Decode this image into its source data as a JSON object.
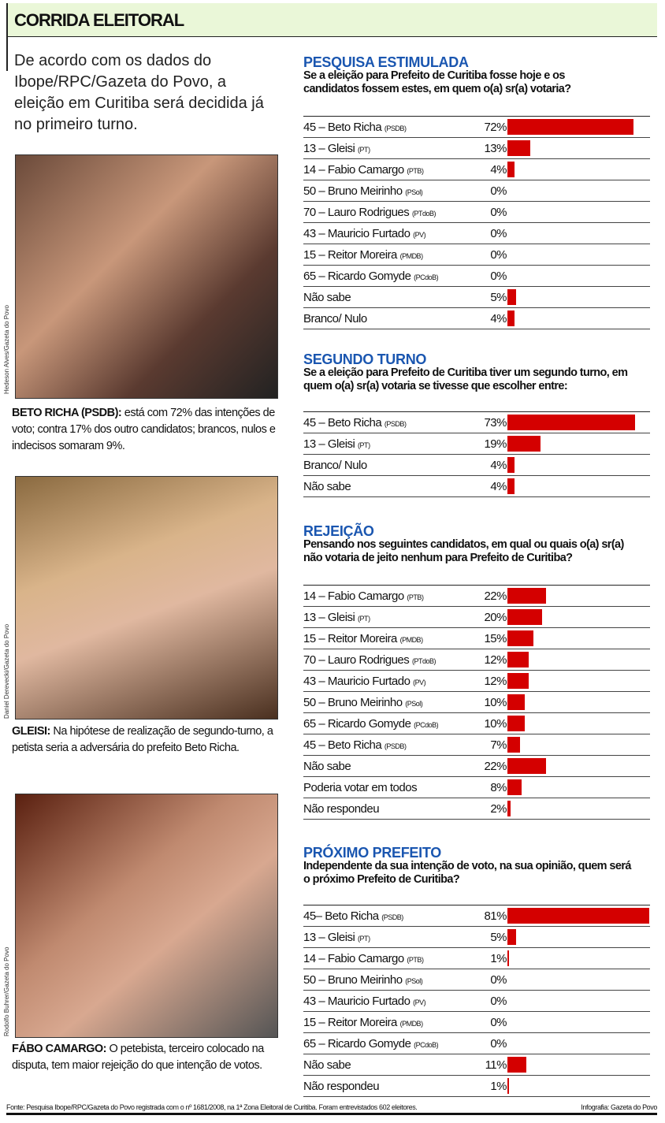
{
  "header": {
    "title": "CORRIDA ELEITORAL"
  },
  "intro": "De acordo com os dados do Ibope/RPC/Gazeta do Povo, a eleição em Curitiba será decidida já no primeiro turno.",
  "photos": [
    {
      "credit": "Hedeson Alves/Gazeta do Povo",
      "name": "BETO RICHA (PSDB):",
      "caption": "está com 72% das intenções de voto; contra 17% dos outro candidatos; brancos, nulos e indecisos somaram 9%."
    },
    {
      "credit": "Daniel Derevecki/Gazeta do Povo",
      "name": "GLEISI:",
      "caption": "Na hipótese de realização de segundo-turno, a petista seria a adversária do prefeito Beto Richa."
    },
    {
      "credit": "Rodolfo Buhrer/Gazeta do Povo",
      "name": "FÁBO CAMARGO:",
      "caption": "O petebista, terceiro colocado na disputa, tem maior rejeição do que intenção de votos."
    }
  ],
  "colors": {
    "bar": "#d40000",
    "title": "#1a56b0",
    "header_bg": "#eaf7d8"
  },
  "chart_data": [
    {
      "type": "bar",
      "title": "PESQUISA ESTIMULADA",
      "subtitle": "Se a eleição para Prefeito de Curitiba fosse hoje e os candidatos fossem estes, em quem o(a) sr(a) votaria?",
      "unit": "%",
      "categories": [
        [
          "45 – Beto Richa",
          "PSDB"
        ],
        [
          "13 – Gleisi",
          "PT"
        ],
        [
          "14 – Fabio Camargo",
          "PTB"
        ],
        [
          "50 – Bruno Meirinho",
          "PSol"
        ],
        [
          "70 – Lauro Rodrigues",
          "PTdoB"
        ],
        [
          "43 – Mauricio Furtado",
          "PV"
        ],
        [
          "15 – Reitor Moreira",
          "PMDB"
        ],
        [
          "65 – Ricardo Gomyde",
          "PCdoB"
        ],
        [
          "Não sabe",
          ""
        ],
        [
          "Branco/ Nulo",
          ""
        ]
      ],
      "values": [
        72,
        13,
        4,
        0,
        0,
        0,
        0,
        0,
        5,
        4
      ]
    },
    {
      "type": "bar",
      "title": "SEGUNDO TURNO",
      "subtitle": "Se a eleição para Prefeito de Curitiba tiver um segundo turno, em quem o(a) sr(a) votaria se tivesse que escolher entre:",
      "unit": "%",
      "categories": [
        [
          "45 – Beto Richa",
          "PSDB"
        ],
        [
          "13 – Gleisi",
          "PT"
        ],
        [
          "Branco/ Nulo",
          ""
        ],
        [
          "Não sabe",
          ""
        ]
      ],
      "values": [
        73,
        19,
        4,
        4
      ]
    },
    {
      "type": "bar",
      "title": "REJEIÇÃO",
      "subtitle": "Pensando nos seguintes candidatos, em qual ou quais o(a) sr(a) não votaria de jeito nenhum para Prefeito de Curitiba?",
      "unit": "%",
      "categories": [
        [
          "14 – Fabio Camargo",
          "PTB"
        ],
        [
          "13 – Gleisi",
          "PT"
        ],
        [
          "15 – Reitor Moreira",
          "PMDB"
        ],
        [
          "70 – Lauro Rodrigues",
          "PTdoB"
        ],
        [
          "43 – Mauricio Furtado",
          "PV"
        ],
        [
          "50 – Bruno Meirinho",
          "PSol"
        ],
        [
          "65 – Ricardo Gomyde",
          "PCdoB"
        ],
        [
          "45 – Beto Richa",
          "PSDB"
        ],
        [
          "Não sabe",
          ""
        ],
        [
          "Poderia votar em todos",
          ""
        ],
        [
          "Não respondeu",
          ""
        ]
      ],
      "values": [
        22,
        20,
        15,
        12,
        12,
        10,
        10,
        7,
        22,
        8,
        2
      ]
    },
    {
      "type": "bar",
      "title": "PRÓXIMO PREFEITO",
      "subtitle": "Independente da sua intenção de voto, na sua opinião, quem será o próximo Prefeito de Curitiba?",
      "unit": "%",
      "categories": [
        [
          "45– Beto Richa",
          "PSDB"
        ],
        [
          "13 – Gleisi",
          "PT"
        ],
        [
          "14 – Fabio Camargo",
          "PTB"
        ],
        [
          "50 – Bruno Meirinho",
          "PSol"
        ],
        [
          "43 – Mauricio Furtado",
          "PV"
        ],
        [
          "15 – Reitor Moreira",
          "PMDB"
        ],
        [
          "65 – Ricardo Gomyde",
          "PCdoB"
        ],
        [
          "Não sabe",
          ""
        ],
        [
          "Não respondeu",
          ""
        ]
      ],
      "values": [
        81,
        5,
        1,
        0,
        0,
        0,
        0,
        11,
        1
      ]
    }
  ],
  "footer": {
    "source": "Fonte: Pesquisa Ibope/RPC/Gazeta do Povo registrada com o nº 1681/2008, na 1ª Zona Eleitoral de Curitiba. Foram entrevistados 602 eleitores.",
    "credit": "Infografia: Gazeta do Povo"
  }
}
